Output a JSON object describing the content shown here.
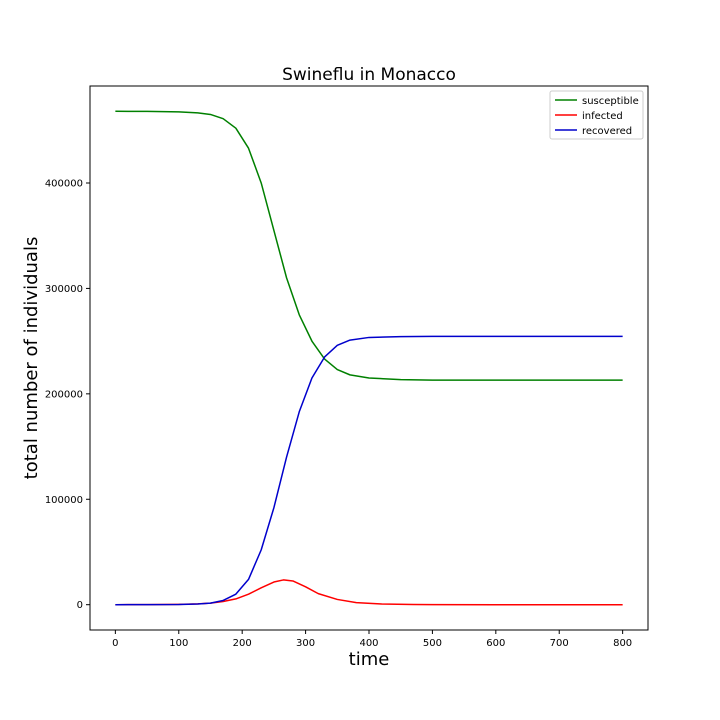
{
  "chart_data": {
    "type": "line",
    "title": "Swineflu in Monacco",
    "xlabel": "time",
    "ylabel": "total number of individuals",
    "xlim": [
      -40,
      840
    ],
    "ylim": [
      -24000,
      492000
    ],
    "xticks": [
      0,
      100,
      200,
      300,
      400,
      500,
      600,
      700,
      800
    ],
    "yticks": [
      0,
      100000,
      200000,
      300000,
      400000
    ],
    "grid": false,
    "legend_position": "top-right",
    "series": [
      {
        "name": "susceptible",
        "color": "#008000",
        "x": [
          0,
          50,
          100,
          130,
          150,
          170,
          190,
          210,
          230,
          250,
          270,
          290,
          310,
          330,
          350,
          370,
          400,
          450,
          500,
          600,
          700,
          800
        ],
        "y": [
          468000,
          467900,
          467500,
          466500,
          465000,
          461000,
          452000,
          433000,
          400000,
          355000,
          310000,
          275000,
          250000,
          233000,
          223000,
          218000,
          215000,
          213500,
          213000,
          213000,
          213000,
          213000
        ]
      },
      {
        "name": "infected",
        "color": "#ff0000",
        "x": [
          0,
          50,
          100,
          130,
          150,
          170,
          190,
          210,
          230,
          250,
          265,
          280,
          300,
          320,
          350,
          380,
          420,
          470,
          500,
          600,
          700,
          800
        ],
        "y": [
          0,
          50,
          300,
          800,
          1500,
          3000,
          5500,
          10000,
          16000,
          21500,
          23500,
          22500,
          17000,
          10500,
          5000,
          2000,
          700,
          200,
          100,
          0,
          0,
          0
        ]
      },
      {
        "name": "recovered",
        "color": "#0000cc",
        "x": [
          0,
          50,
          100,
          130,
          150,
          170,
          190,
          210,
          230,
          250,
          270,
          290,
          310,
          330,
          350,
          370,
          400,
          450,
          500,
          600,
          700,
          800
        ],
        "y": [
          0,
          50,
          200,
          700,
          1500,
          4000,
          10000,
          24000,
          52000,
          92000,
          140000,
          183000,
          215000,
          235000,
          246000,
          251000,
          253500,
          254300,
          254500,
          254500,
          254500,
          254500
        ]
      }
    ]
  }
}
